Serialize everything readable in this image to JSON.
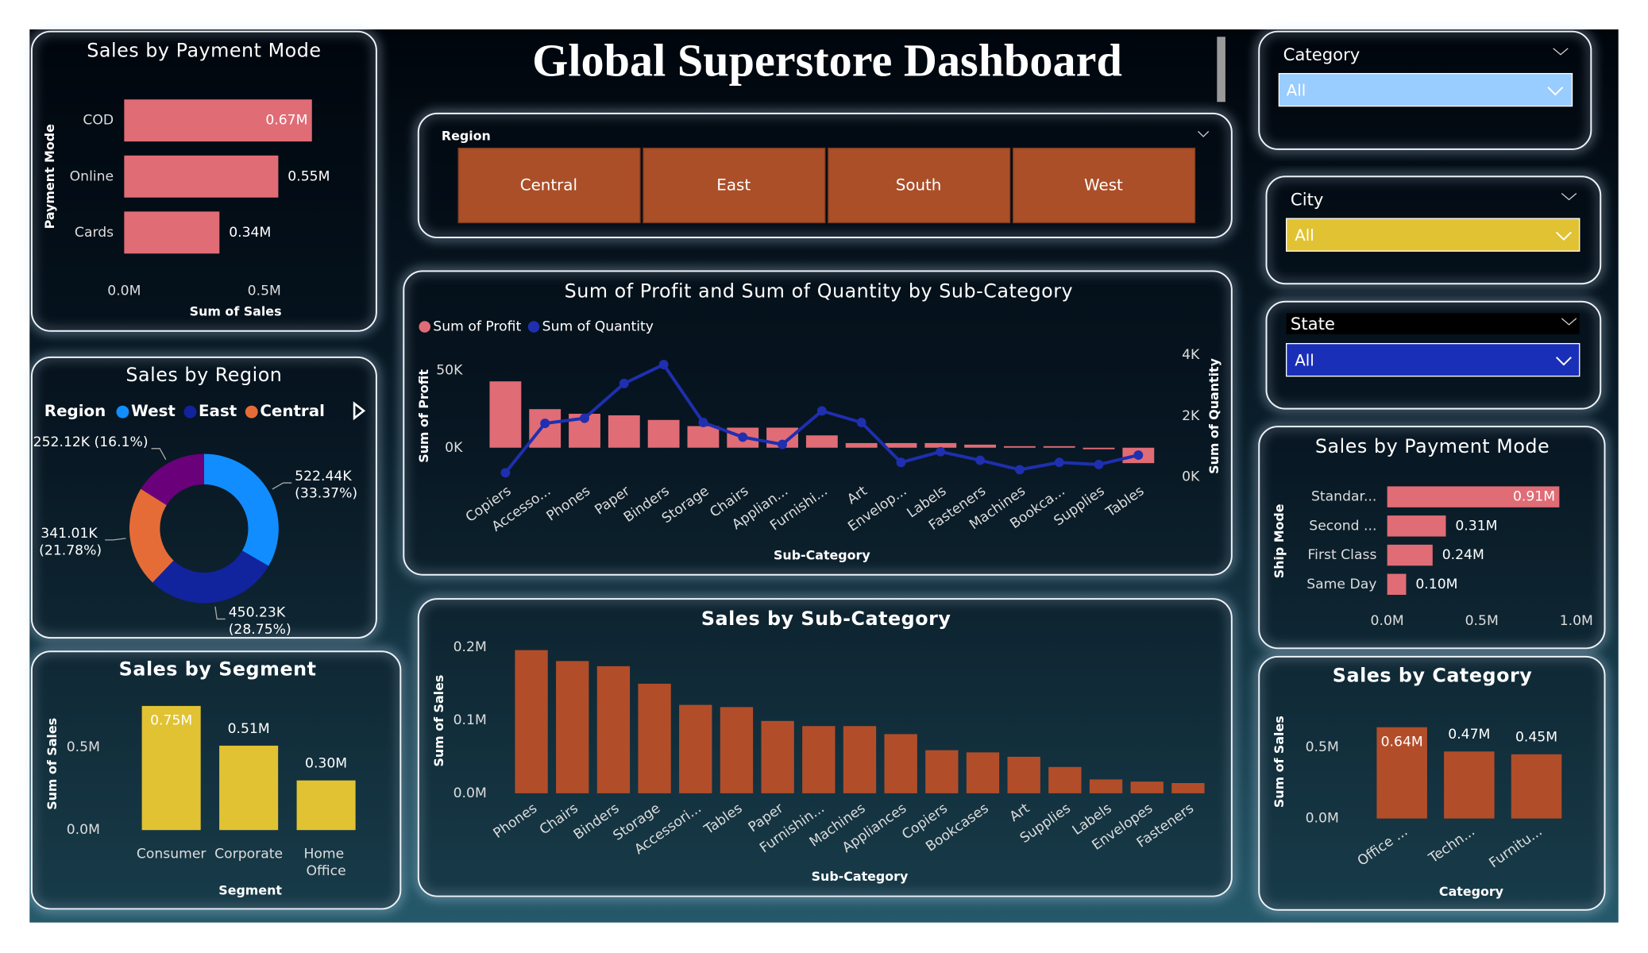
{
  "title": "Global Superstore Dashboard",
  "slicers": [
    {
      "title": "Region",
      "options": [
        "Central",
        "East",
        "South",
        "West"
      ]
    },
    {
      "title": "Category",
      "selected": "All"
    },
    {
      "title": "City",
      "selected": "All"
    },
    {
      "title": "State",
      "selected": "All"
    }
  ],
  "chart_data": [
    {
      "type": "hbar",
      "title": "Sales by Payment Mode",
      "categories": [
        "COD",
        "Online",
        "Cards"
      ],
      "values": [
        0.67,
        0.55,
        0.34
      ],
      "value_labels": [
        "0.67M",
        "0.55M",
        "0.34M"
      ],
      "color": "#e06c75",
      "xlim": [
        0,
        0.75
      ],
      "xticks": [
        {
          "value": 0,
          "label": "0.0M"
        },
        {
          "value": 0.5,
          "label": "0.5M"
        }
      ],
      "x_label": "Sum of Sales",
      "y_label": "Payment Mode"
    },
    {
      "type": "donut",
      "title": "Sales by Region",
      "legend_title": "Region",
      "categories": [
        "West",
        "East",
        "Central",
        null
      ],
      "values": [
        522.44,
        450.23,
        341.01,
        252.12
      ],
      "value_labels": [
        "522.44K (33.37%)",
        "450.23K (28.75%)",
        "341.01K (21.78%)",
        "252.12K (16.1%)"
      ],
      "colors": [
        "#118dff",
        "#12239e",
        "#e66c37",
        "#6b007b"
      ]
    },
    {
      "type": "vbar",
      "title": "Sales by Segment",
      "categories": [
        "Consumer",
        "Corporate",
        "Home Office"
      ],
      "values": [
        0.75,
        0.51,
        0.3
      ],
      "value_labels": [
        "0.75M",
        "0.51M",
        "0.30M"
      ],
      "color": "#e1c233",
      "ylim": [
        0,
        0.8
      ],
      "yticks": [
        {
          "value": 0,
          "label": "0.0M"
        },
        {
          "value": 0.5,
          "label": "0.5M"
        }
      ],
      "x_label": "Segment",
      "y_label": "Sum of Sales"
    },
    {
      "type": "combo",
      "title": "Sum of Profit and Sum of Quantity by Sub-Category",
      "categories": [
        "Copiers",
        "Accesso...",
        "Phones",
        "Paper",
        "Binders",
        "Storage",
        "Chairs",
        "Applian...",
        "Furnishi...",
        "Art",
        "Envelop...",
        "Labels",
        "Fasteners",
        "Machines",
        "Bookca...",
        "Supplies",
        "Tables"
      ],
      "series": [
        {
          "name": "Sum of Profit",
          "color": "#e06c75",
          "values": [
            43000,
            25000,
            22000,
            21000,
            18000,
            14000,
            13000,
            13000,
            8000,
            3000,
            3000,
            3000,
            2000,
            1000,
            1000,
            -1000,
            -10000
          ]
        },
        {
          "name": "Sum of Quantity",
          "color": "#1f2fb0",
          "axis": "y2",
          "values": [
            140,
            1760,
            1930,
            3070,
            3690,
            1790,
            1310,
            1070,
            2170,
            1790,
            480,
            830,
            550,
            240,
            480,
            410,
            720
          ]
        }
      ],
      "ylim": [
        -19000,
        60000
      ],
      "yticks": [
        {
          "value": 0,
          "label": "0K"
        },
        {
          "value": 50000,
          "label": "50K"
        }
      ],
      "y2lim": [
        0,
        4000
      ],
      "y2ticks": [
        {
          "value": 0,
          "label": "0K"
        },
        {
          "value": 2000,
          "label": "2K"
        },
        {
          "value": 4000,
          "label": "4K"
        }
      ],
      "x_label": "Sub-Category",
      "y_label": "Sum of Profit",
      "y2_label": "Sum of Quantity"
    },
    {
      "type": "vbar",
      "title": "Sales by Sub-Category",
      "categories": [
        "Phones",
        "Chairs",
        "Binders",
        "Storage",
        "Accessori...",
        "Tables",
        "Paper",
        "Furnishin...",
        "Machines",
        "Appliances",
        "Copiers",
        "Bookcases",
        "Art",
        "Supplies",
        "Labels",
        "Envelopes",
        "Fasteners"
      ],
      "values": [
        0.196,
        0.181,
        0.174,
        0.15,
        0.121,
        0.118,
        0.099,
        0.092,
        0.092,
        0.081,
        0.059,
        0.056,
        0.05,
        0.036,
        0.019,
        0.016,
        0.014
      ],
      "color": "#b24d2a",
      "ylim": [
        0,
        0.21
      ],
      "yticks": [
        {
          "value": 0,
          "label": "0.0M"
        },
        {
          "value": 0.1,
          "label": "0.1M"
        },
        {
          "value": 0.2,
          "label": "0.2M"
        }
      ],
      "x_label": "Sub-Category",
      "y_label": "Sum of Sales"
    },
    {
      "type": "hbar",
      "title": "Sales by Payment Mode",
      "categories": [
        "Standar...",
        "Second ...",
        "First Class",
        "Same Day"
      ],
      "values": [
        0.91,
        0.31,
        0.24,
        0.1
      ],
      "value_labels": [
        "0.91M",
        "0.31M",
        "0.24M",
        "0.10M"
      ],
      "color": "#e06c75",
      "xlim": [
        0,
        1.0
      ],
      "xticks": [
        {
          "value": 0,
          "label": "0.0M"
        },
        {
          "value": 0.5,
          "label": "0.5M"
        },
        {
          "value": 1.0,
          "label": "1.0M"
        }
      ],
      "y_label": "Ship Mode"
    },
    {
      "type": "vbar",
      "title": "Sales by Category",
      "categories": [
        "Office ...",
        "Techn...",
        "Furnitu..."
      ],
      "values": [
        0.64,
        0.47,
        0.45
      ],
      "value_labels": [
        "0.64M",
        "0.47M",
        "0.45M"
      ],
      "color": "#b24d2a",
      "ylim": [
        0,
        0.7
      ],
      "yticks": [
        {
          "value": 0,
          "label": "0.0M"
        },
        {
          "value": 0.5,
          "label": "0.5M"
        }
      ],
      "x_label": "Category",
      "y_label": "Sum of Sales"
    }
  ]
}
